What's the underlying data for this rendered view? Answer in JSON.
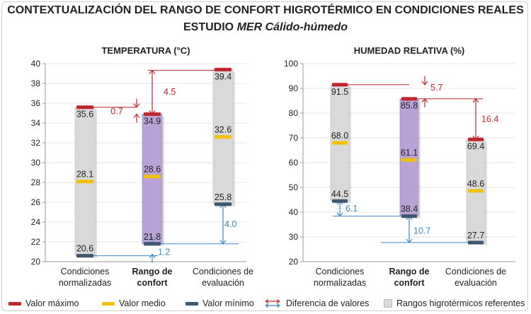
{
  "title_line1": "CONTEXTUALIZACIÓN DEL RANGO DE CONFORT HIGROTÉRMICO EN CONDICIONES REALES",
  "title_line2_prefix": "ESTUDIO ",
  "title_line2_italic": "MER Cálido-húmedo",
  "colors": {
    "max": "#c0262c",
    "mean": "#f2c200",
    "min": "#3e5870",
    "grey_band": "#d9d9d9",
    "purple_band": "#b8a2d6",
    "diff_red": "#c0262c",
    "diff_blue": "#3d86c6"
  },
  "legend": {
    "max": "Valor máximo",
    "mean": "Valor medio",
    "min": "Valor mínimo",
    "diff": "Diferencia de valores",
    "range": "Rangos higrotérmicos referentes"
  },
  "chart_data": [
    {
      "type": "floating-bar",
      "title": "TEMPERATURA (°C)",
      "ylim": [
        20,
        40
      ],
      "yticks": [
        20,
        22,
        24,
        26,
        28,
        30,
        32,
        34,
        36,
        38,
        40
      ],
      "categories": [
        {
          "line1": "Condiciones",
          "line2": "normalizadas",
          "bold": false
        },
        {
          "line1": "Rango de",
          "line2": "confort",
          "bold": true
        },
        {
          "line1": "Condiciones de",
          "line2": "evaluación",
          "bold": false
        }
      ],
      "series": [
        {
          "name": "Valor máximo",
          "values": [
            35.6,
            34.9,
            39.4
          ]
        },
        {
          "name": "Valor medio",
          "values": [
            28.1,
            28.6,
            32.6
          ]
        },
        {
          "name": "Valor mínimo",
          "values": [
            20.6,
            21.8,
            25.8
          ]
        }
      ],
      "differences": [
        {
          "value": 0.7,
          "label": "0.7",
          "between": [
            "Condiciones normalizadas máximo",
            "Rango de confort máximo"
          ],
          "color": "red"
        },
        {
          "value": 4.5,
          "label": "4.5",
          "between": [
            "Rango de confort máximo",
            "Condiciones de evaluación máximo"
          ],
          "color": "red"
        },
        {
          "value": 1.2,
          "label": "1.2",
          "between": [
            "Condiciones normalizadas mínimo",
            "Rango de confort mínimo"
          ],
          "color": "blue"
        },
        {
          "value": 4.0,
          "label": "4.0",
          "between": [
            "Rango de confort mínimo",
            "Condiciones de evaluación mínimo"
          ],
          "color": "blue"
        }
      ]
    },
    {
      "type": "floating-bar",
      "title": "HUMEDAD RELATIVA (%)",
      "ylim": [
        20,
        100
      ],
      "yticks": [
        20,
        30,
        40,
        50,
        60,
        70,
        80,
        90,
        100
      ],
      "categories": [
        {
          "line1": "Condiciones",
          "line2": "normalizadas",
          "bold": false
        },
        {
          "line1": "Rango de",
          "line2": "confort",
          "bold": true
        },
        {
          "line1": "Condiciones de",
          "line2": "evaluación",
          "bold": false
        }
      ],
      "series": [
        {
          "name": "Valor máximo",
          "values": [
            91.5,
            85.8,
            69.4
          ]
        },
        {
          "name": "Valor medio",
          "values": [
            68.0,
            61.1,
            48.6
          ]
        },
        {
          "name": "Valor mínimo",
          "values": [
            44.5,
            38.4,
            27.7
          ]
        }
      ],
      "differences": [
        {
          "value": 5.7,
          "label": "5.7",
          "between": [
            "Condiciones normalizadas máximo",
            "Rango de confort máximo"
          ],
          "color": "red"
        },
        {
          "value": 16.4,
          "label": "16.4",
          "between": [
            "Rango de confort máximo",
            "Condiciones de evaluación máximo"
          ],
          "color": "red"
        },
        {
          "value": 6.1,
          "label": "6.1",
          "between": [
            "Condiciones normalizadas mínimo",
            "Rango de confort mínimo"
          ],
          "color": "blue"
        },
        {
          "value": 10.7,
          "label": "10.7",
          "between": [
            "Rango de confort mínimo",
            "Condiciones de evaluación mínimo"
          ],
          "color": "blue"
        }
      ]
    }
  ]
}
